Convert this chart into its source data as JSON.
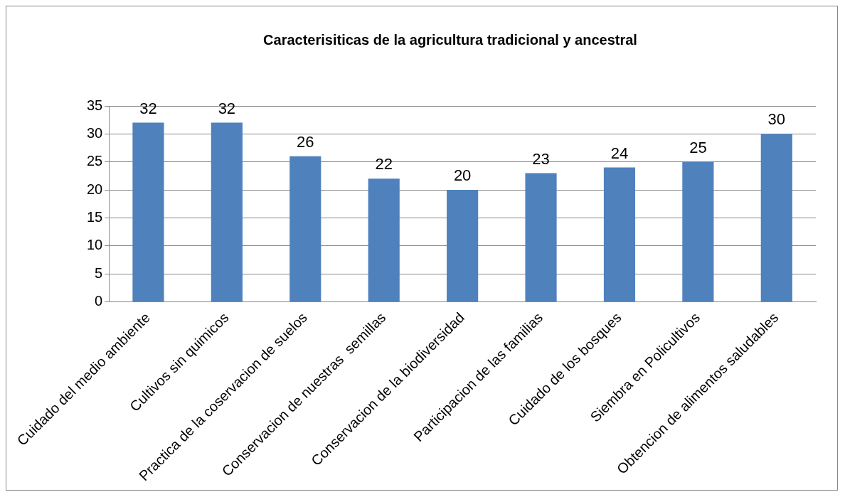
{
  "chart_data": {
    "type": "bar",
    "title": "Caracterisiticas de la agricultura tradicional y ancestral",
    "categories": [
      "Cuidado del medio ambiente",
      "Cultivos sin quimicos",
      "Practica de la coservacion de suelos",
      "Conservacion de nuestras  semillas",
      "Conservacion de la biodiversidad",
      "Participacion de las familias",
      "Cuidado de los bosques",
      "Siembra en Policultivos",
      "Obtencion de alimentos saludables"
    ],
    "values": [
      32,
      32,
      26,
      22,
      20,
      23,
      24,
      25,
      30
    ],
    "color": "#4f81bd",
    "ylim": [
      0,
      35
    ],
    "yticks": [
      0,
      5,
      10,
      15,
      20,
      25,
      30,
      35
    ],
    "grid": "y",
    "legend": false,
    "data_labels": true
  }
}
